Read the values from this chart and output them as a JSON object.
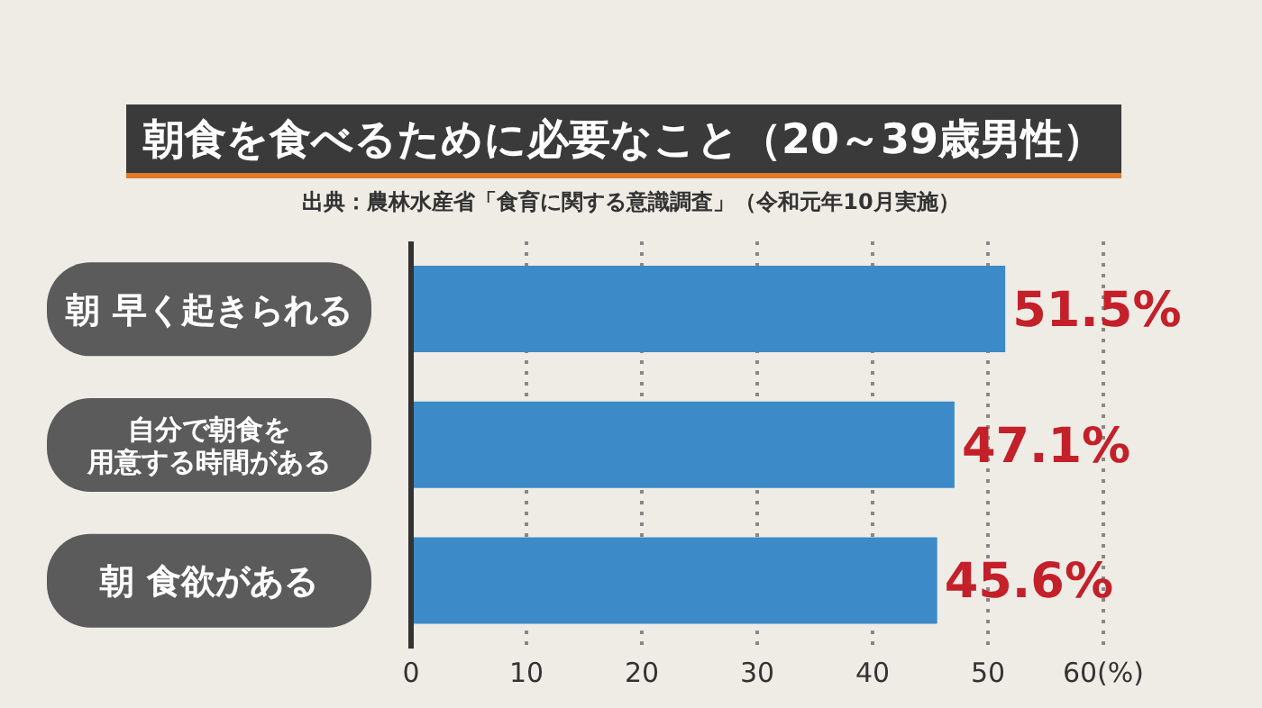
{
  "chart_data": {
    "type": "bar",
    "orientation": "horizontal",
    "title": "朝食を食べるために必要なこと（20～39歳男性）",
    "annotations": [
      "出典：農林水産省「食育に関する意識調査」（令和元年10月実施）"
    ],
    "categories": [
      "朝 早く起きられる",
      "自分で朝食を用意する時間がある",
      "朝 食欲がある"
    ],
    "values": [
      51.5,
      47.1,
      45.6
    ],
    "color": "#3d8ac8",
    "value_labels": [
      "51.5%",
      "47.1%",
      "45.6%"
    ],
    "xlim": [
      0,
      60
    ],
    "xticks": [
      0,
      10,
      20,
      30,
      40,
      50,
      {
        "value": 60,
        "label": "60(%)"
      }
    ],
    "grid": "x",
    "legend": false
  }
}
